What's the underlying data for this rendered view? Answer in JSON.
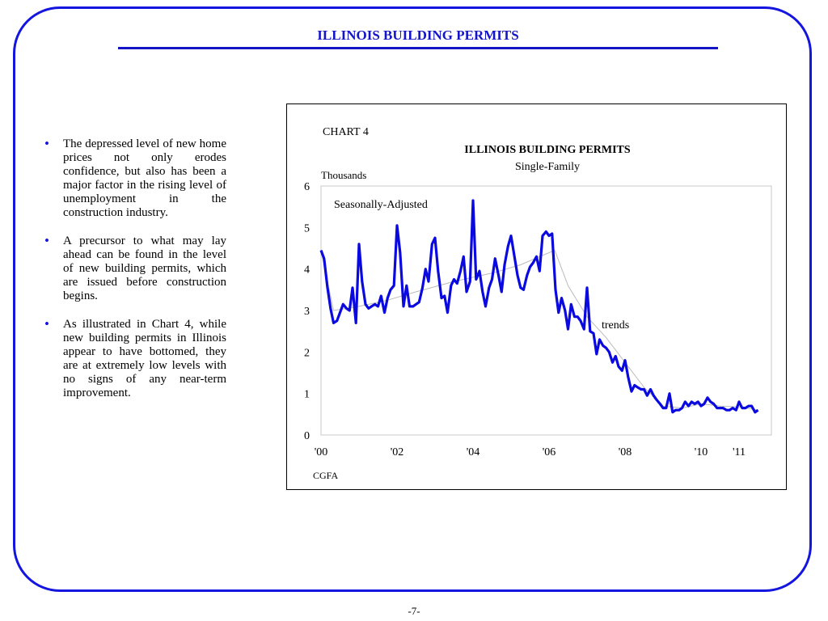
{
  "page": {
    "title": "ILLINOIS BUILDING PERMITS",
    "footer": "-7-"
  },
  "bullets": [
    {
      "text": "The depressed level of new home prices not only erodes confidence, but also has been a major factor in the rising level of unemployment in the construction industry."
    },
    {
      "text": "A precursor to what may lay ahead can be found in the level of new building permits, which are issued before construction begins."
    },
    {
      "text": "As illustrated in Chart 4, while new building permits in Illinois appear to have bottomed, they are at extremely low levels with no signs of any near-term improvement."
    }
  ],
  "colors": {
    "accent": "#1515e0",
    "series_line": "#0a0ae0",
    "trend_line": "#bbbbbb"
  },
  "chart_data": {
    "type": "line",
    "label": "CHART 4",
    "title": "ILLINOIS BUILDING PERMITS",
    "subtitle": "Single-Family",
    "ylabel": "Thousands",
    "annotations": [
      "Seasonally-Adjusted",
      "trends"
    ],
    "source": "CGFA",
    "ylim": [
      0,
      6
    ],
    "xlim": [
      2000,
      2011.85
    ],
    "yticks": [
      0,
      1,
      2,
      3,
      4,
      5,
      6
    ],
    "xtick_labels": [
      {
        "value": 2000,
        "label": "'00"
      },
      {
        "value": 2002,
        "label": "'02"
      },
      {
        "value": 2004,
        "label": "'04"
      },
      {
        "value": 2006,
        "label": "'06"
      },
      {
        "value": 2008,
        "label": "'08"
      },
      {
        "value": 2010,
        "label": "'10"
      },
      {
        "value": 2011,
        "label": "'11"
      }
    ],
    "grid": false,
    "series": [
      {
        "x": [
          2000.0,
          2000.08,
          2000.17,
          2000.25,
          2000.33,
          2000.42,
          2000.5,
          2000.58,
          2000.67,
          2000.75,
          2000.83,
          2000.92,
          2001.0,
          2001.08,
          2001.17,
          2001.25,
          2001.33,
          2001.42,
          2001.5,
          2001.58,
          2001.67,
          2001.75,
          2001.83,
          2001.92,
          2002.0,
          2002.08,
          2002.17,
          2002.25,
          2002.33,
          2002.42,
          2002.5,
          2002.58,
          2002.67,
          2002.75,
          2002.83,
          2002.92,
          2003.0,
          2003.08,
          2003.17,
          2003.25,
          2003.33,
          2003.42,
          2003.5,
          2003.58,
          2003.67,
          2003.75,
          2003.83,
          2003.92,
          2004.0,
          2004.08,
          2004.17,
          2004.25,
          2004.33,
          2004.42,
          2004.5,
          2004.58,
          2004.67,
          2004.75,
          2004.83,
          2004.92,
          2005.0,
          2005.08,
          2005.17,
          2005.25,
          2005.33,
          2005.42,
          2005.5,
          2005.58,
          2005.67,
          2005.75,
          2005.83,
          2005.92,
          2006.0,
          2006.08,
          2006.17,
          2006.25,
          2006.33,
          2006.42,
          2006.5,
          2006.58,
          2006.67,
          2006.75,
          2006.83,
          2006.92,
          2007.0,
          2007.08,
          2007.17,
          2007.25,
          2007.33,
          2007.42,
          2007.5,
          2007.58,
          2007.67,
          2007.75,
          2007.83,
          2007.92,
          2008.0,
          2008.08,
          2008.17,
          2008.25,
          2008.33,
          2008.42,
          2008.5,
          2008.58,
          2008.67,
          2008.75,
          2008.83,
          2008.92,
          2009.0,
          2009.08,
          2009.17,
          2009.25,
          2009.33,
          2009.42,
          2009.5,
          2009.58,
          2009.67,
          2009.75,
          2009.83,
          2009.92,
          2010.0,
          2010.08,
          2010.17,
          2010.25,
          2010.33,
          2010.42,
          2010.5,
          2010.58,
          2010.67,
          2010.75,
          2010.83,
          2010.92,
          2011.0,
          2011.08,
          2011.17,
          2011.25,
          2011.33,
          2011.42,
          2011.5
        ],
        "values": [
          4.45,
          4.25,
          3.55,
          3.05,
          2.7,
          2.75,
          2.95,
          3.15,
          3.05,
          3.0,
          3.55,
          2.7,
          4.6,
          3.7,
          3.15,
          3.05,
          3.1,
          3.15,
          3.1,
          3.35,
          2.95,
          3.3,
          3.5,
          3.6,
          5.05,
          4.4,
          3.1,
          3.6,
          3.1,
          3.1,
          3.15,
          3.2,
          3.55,
          4.0,
          3.7,
          4.6,
          4.75,
          3.95,
          3.3,
          3.35,
          2.95,
          3.6,
          3.75,
          3.65,
          3.95,
          4.3,
          3.45,
          3.7,
          5.65,
          3.75,
          3.95,
          3.45,
          3.1,
          3.55,
          3.75,
          4.25,
          3.85,
          3.45,
          4.1,
          4.55,
          4.8,
          4.35,
          3.85,
          3.55,
          3.5,
          3.85,
          4.05,
          4.15,
          4.3,
          3.95,
          4.8,
          4.9,
          4.8,
          4.85,
          3.5,
          2.95,
          3.3,
          3.0,
          2.55,
          3.15,
          2.85,
          2.85,
          2.75,
          2.55,
          3.55,
          2.5,
          2.45,
          1.95,
          2.3,
          2.15,
          2.1,
          2.0,
          1.75,
          1.9,
          1.65,
          1.55,
          1.8,
          1.4,
          1.05,
          1.2,
          1.15,
          1.1,
          1.1,
          0.95,
          1.1,
          0.95,
          0.85,
          0.75,
          0.65,
          0.65,
          1.0,
          0.55,
          0.6,
          0.6,
          0.65,
          0.8,
          0.7,
          0.8,
          0.75,
          0.8,
          0.7,
          0.75,
          0.9,
          0.8,
          0.75,
          0.65,
          0.65,
          0.65,
          0.6,
          0.6,
          0.65,
          0.6,
          0.8,
          0.65,
          0.65,
          0.7,
          0.7,
          0.55,
          0.6
        ]
      },
      {
        "x": [
          2000.0,
          2000.33,
          2001.0,
          2001.75,
          2002.5,
          2003.5,
          2004.5,
          2005.25,
          2005.75,
          2006.15,
          2006.5,
          2007.0,
          2007.5,
          2008.0,
          2008.5,
          2009.0,
          2009.5,
          2010.0,
          2010.5,
          2011.0,
          2011.5
        ],
        "values": [
          4.45,
          3.0,
          3.1,
          3.25,
          3.45,
          3.7,
          3.9,
          4.1,
          4.3,
          4.45,
          3.6,
          2.85,
          2.35,
          1.75,
          1.15,
          0.7,
          0.65,
          0.75,
          0.7,
          0.68,
          0.6
        ]
      }
    ]
  }
}
